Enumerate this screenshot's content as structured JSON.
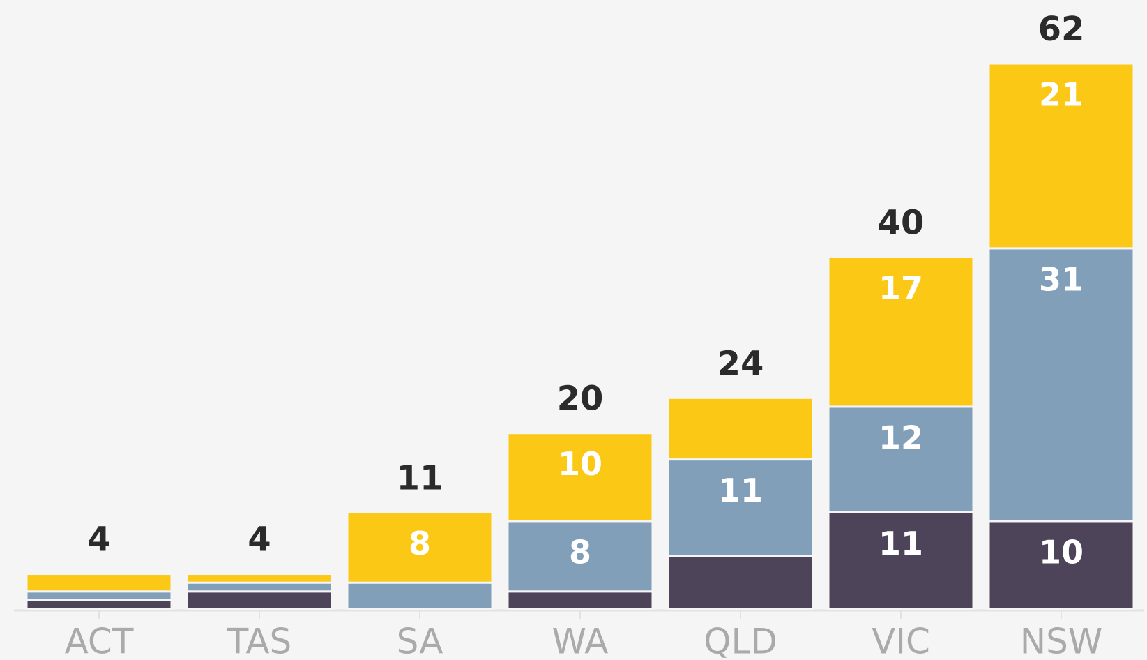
{
  "chart_data": {
    "type": "stacked_bar",
    "categories": [
      "ACT",
      "TAS",
      "SA",
      "WA",
      "QLD",
      "VIC",
      "NSW"
    ],
    "series": [
      {
        "color": "#4e4459",
        "values": [
          1,
          2,
          0,
          2,
          6,
          11,
          10
        ]
      },
      {
        "color": "#819fb9",
        "values": [
          1,
          1,
          3,
          8,
          11,
          12,
          31
        ]
      },
      {
        "color": "#fac815",
        "values": [
          2,
          1,
          8,
          10,
          7,
          17,
          21
        ]
      }
    ],
    "totals": [
      4,
      4,
      11,
      20,
      24,
      40,
      62
    ],
    "ylim": [
      0,
      62
    ]
  }
}
